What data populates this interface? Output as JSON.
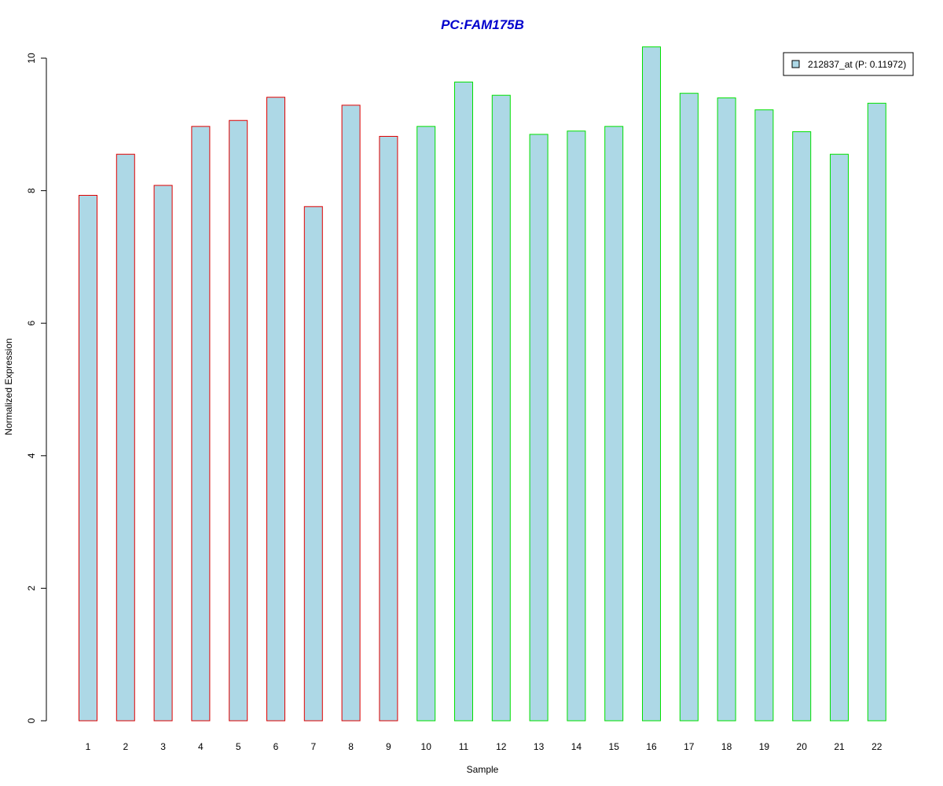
{
  "chart_data": {
    "type": "bar",
    "title": "PC:FAM175B",
    "xlabel": "Sample",
    "ylabel": "Normalized Expression",
    "categories": [
      "1",
      "2",
      "3",
      "4",
      "5",
      "6",
      "7",
      "8",
      "9",
      "10",
      "11",
      "12",
      "13",
      "14",
      "15",
      "16",
      "17",
      "18",
      "19",
      "20",
      "21",
      "22"
    ],
    "series": [
      {
        "name": "212837_at (P: 0.11972)",
        "values": [
          7.93,
          8.55,
          8.08,
          8.97,
          9.06,
          9.41,
          7.76,
          9.29,
          8.82,
          8.97,
          9.64,
          9.44,
          8.85,
          8.9,
          8.97,
          10.17,
          9.47,
          9.4,
          9.22,
          8.89,
          8.55,
          9.32
        ]
      }
    ],
    "group_outline": [
      "red",
      "red",
      "red",
      "red",
      "red",
      "red",
      "red",
      "red",
      "red",
      "green",
      "green",
      "green",
      "green",
      "green",
      "green",
      "green",
      "green",
      "green",
      "green",
      "green",
      "green",
      "green"
    ],
    "yticks": [
      0,
      2,
      4,
      6,
      8,
      10
    ],
    "ylim": [
      0,
      10.3
    ],
    "grid": false,
    "legend_position": "top-right",
    "colors": {
      "bar_fill": "#add8e6",
      "red": "#e00000",
      "green": "#00e000",
      "title": "#0000cd"
    }
  }
}
